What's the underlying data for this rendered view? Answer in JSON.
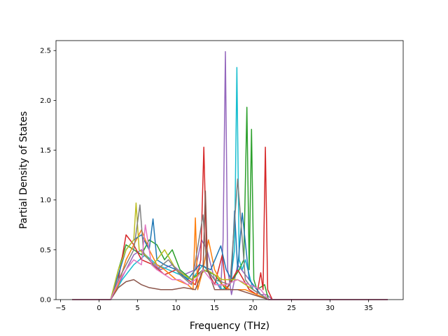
{
  "chart_data": {
    "type": "line",
    "title": "",
    "xlabel": "Frequency (THz)",
    "ylabel": "Partial Density of States",
    "xlim": [
      -5.6,
      39.5
    ],
    "ylim": [
      0,
      2.6
    ],
    "xticks": [
      -5,
      0,
      5,
      10,
      15,
      20,
      25,
      30,
      35
    ],
    "yticks": [
      0.0,
      0.5,
      1.0,
      1.5,
      2.0,
      2.5
    ],
    "xtick_labels": [
      "−5",
      "0",
      "5",
      "10",
      "15",
      "20",
      "25",
      "30",
      "35"
    ],
    "ytick_labels": [
      "0.0",
      "0.5",
      "1.0",
      "1.5",
      "2.0",
      "2.5"
    ],
    "grid": false,
    "legend": "none",
    "colors": [
      "#1f77b4",
      "#ff7f0e",
      "#2ca02c",
      "#d62728",
      "#9467bd",
      "#8c564b",
      "#e377c2",
      "#7f7f7f",
      "#bcbd22",
      "#17becf"
    ],
    "series": [
      {
        "color": "#9467bd",
        "x": [
          -3.5,
          1.5,
          2.5,
          3.5,
          4.5,
          5.5,
          6.5,
          8,
          9.5,
          11,
          12.5,
          13.3,
          14,
          15,
          15.8,
          16.1,
          16.4,
          16.7,
          17.2,
          18,
          19,
          20,
          21,
          21.8,
          22.5,
          37.5
        ],
        "y": [
          0,
          0,
          0.15,
          0.3,
          0.45,
          0.5,
          0.4,
          0.3,
          0.35,
          0.25,
          0.3,
          0.6,
          0.5,
          0.2,
          0.1,
          0.6,
          2.49,
          0.3,
          0.05,
          0.35,
          0.25,
          0.15,
          0.05,
          0.05,
          0,
          0
        ]
      },
      {
        "color": "#17becf",
        "x": [
          -3.5,
          1.5,
          3,
          4.5,
          6,
          7.5,
          9,
          10.5,
          12,
          13.5,
          15,
          16,
          17,
          17.6,
          17.9,
          18.2,
          18.6,
          19,
          20,
          21,
          22,
          37.5
        ],
        "y": [
          0,
          0,
          0.2,
          0.35,
          0.45,
          0.35,
          0.3,
          0.25,
          0.2,
          0.35,
          0.2,
          0.1,
          0.15,
          0.5,
          2.33,
          0.4,
          0.3,
          0.4,
          0.1,
          0.05,
          0,
          0
        ]
      },
      {
        "color": "#2ca02c",
        "x": [
          -3.5,
          1.5,
          2.5,
          3.5,
          4.5,
          5.5,
          6.5,
          7.5,
          8.5,
          9.5,
          10.5,
          12,
          13.5,
          15,
          16.5,
          18.2,
          18.8,
          19.2,
          19.5,
          19.8,
          20.1,
          20.5,
          21.5,
          22,
          37.5
        ],
        "y": [
          0,
          0,
          0.3,
          0.55,
          0.5,
          0.45,
          0.6,
          0.55,
          0.4,
          0.5,
          0.3,
          0.2,
          0.3,
          0.25,
          0.1,
          0.3,
          0.4,
          1.93,
          0.3,
          1.71,
          0.2,
          0.1,
          0.15,
          0,
          0
        ]
      },
      {
        "color": "#d62728",
        "x": [
          -3.5,
          1.5,
          2.5,
          3.5,
          4.5,
          5.5,
          7,
          8.5,
          10,
          11.5,
          12.5,
          13.2,
          13.6,
          14,
          15,
          16,
          16.5,
          18,
          19.5,
          20.5,
          21,
          21.3,
          21.6,
          21.9,
          22.5,
          37.5
        ],
        "y": [
          0,
          0,
          0.2,
          0.65,
          0.55,
          0.4,
          0.35,
          0.25,
          0.3,
          0.2,
          0.15,
          0.4,
          1.53,
          0.3,
          0.15,
          0.45,
          0.1,
          0.3,
          0.1,
          0.05,
          0.27,
          0.1,
          1.53,
          0.1,
          0,
          0
        ]
      },
      {
        "color": "#ff7f0e",
        "x": [
          -3.5,
          1.5,
          2.5,
          3.5,
          4.5,
          5.5,
          6.5,
          7.5,
          8.5,
          10,
          11.5,
          12.2,
          12.5,
          12.8,
          13.5,
          14.2,
          15,
          16,
          17,
          19,
          22,
          37.5
        ],
        "y": [
          0,
          0,
          0.15,
          0.4,
          0.55,
          0.7,
          0.5,
          0.35,
          0.3,
          0.2,
          0.15,
          0.1,
          0.82,
          0.1,
          0.3,
          0.6,
          0.3,
          0.15,
          0.1,
          0.1,
          0,
          0
        ]
      },
      {
        "color": "#1f77b4",
        "x": [
          -3.5,
          1.5,
          2.5,
          3.5,
          4.5,
          5.5,
          6.5,
          7,
          7.5,
          8.5,
          10,
          11.5,
          13,
          14.5,
          15.8,
          16.5,
          17.2,
          17.6,
          18,
          18.6,
          19.5,
          21,
          22,
          37.5
        ],
        "y": [
          0,
          0,
          0.25,
          0.5,
          0.6,
          0.65,
          0.5,
          0.81,
          0.4,
          0.35,
          0.3,
          0.2,
          0.35,
          0.3,
          0.54,
          0.3,
          0.2,
          0.89,
          0.3,
          0.87,
          0.2,
          0.05,
          0,
          0
        ]
      },
      {
        "color": "#bcbd22",
        "x": [
          -3.5,
          1.5,
          2.5,
          3.5,
          4.5,
          4.8,
          5.2,
          6,
          7,
          8.5,
          10,
          12,
          14,
          16,
          18,
          20,
          22,
          37.5
        ],
        "y": [
          0,
          0,
          0.3,
          0.5,
          0.6,
          0.97,
          0.5,
          0.45,
          0.35,
          0.5,
          0.3,
          0.2,
          0.3,
          0.2,
          0.2,
          0.1,
          0,
          0
        ]
      },
      {
        "color": "#7f7f7f",
        "x": [
          -3.5,
          1.5,
          2.5,
          3.5,
          4.5,
          5.3,
          5.8,
          6.5,
          7.5,
          9,
          10.5,
          12,
          13.5,
          14,
          15,
          17,
          18,
          19,
          20,
          22,
          37.5
        ],
        "y": [
          0,
          0,
          0.2,
          0.35,
          0.5,
          0.95,
          0.45,
          0.4,
          0.3,
          0.4,
          0.25,
          0.15,
          0.85,
          0.3,
          0.2,
          0.15,
          1.21,
          0.2,
          0.1,
          0,
          0
        ]
      },
      {
        "color": "#8c564b",
        "x": [
          -3.5,
          1.5,
          2.5,
          3.5,
          4.5,
          5.5,
          6.5,
          8,
          9.5,
          11,
          12.5,
          13.5,
          13.8,
          14.1,
          15,
          16.5,
          18,
          20,
          22,
          37.5
        ],
        "y": [
          0,
          0,
          0.12,
          0.18,
          0.2,
          0.15,
          0.12,
          0.1,
          0.1,
          0.12,
          0.1,
          0.3,
          1.09,
          0.3,
          0.1,
          0.1,
          0.1,
          0.05,
          0,
          0
        ]
      },
      {
        "color": "#e377c2",
        "x": [
          -3.5,
          1.5,
          2.5,
          3.5,
          4.5,
          5.5,
          6,
          6.8,
          7.5,
          8.5,
          9.5,
          10.5,
          11.5,
          12.5,
          13.5,
          15,
          16.5,
          18,
          19.5,
          21,
          22,
          37.5
        ],
        "y": [
          0,
          0,
          0.18,
          0.3,
          0.4,
          0.35,
          0.75,
          0.35,
          0.3,
          0.25,
          0.2,
          0.2,
          0.15,
          0.2,
          0.3,
          0.15,
          0.15,
          0.2,
          0.15,
          0.1,
          0,
          0
        ]
      }
    ]
  }
}
